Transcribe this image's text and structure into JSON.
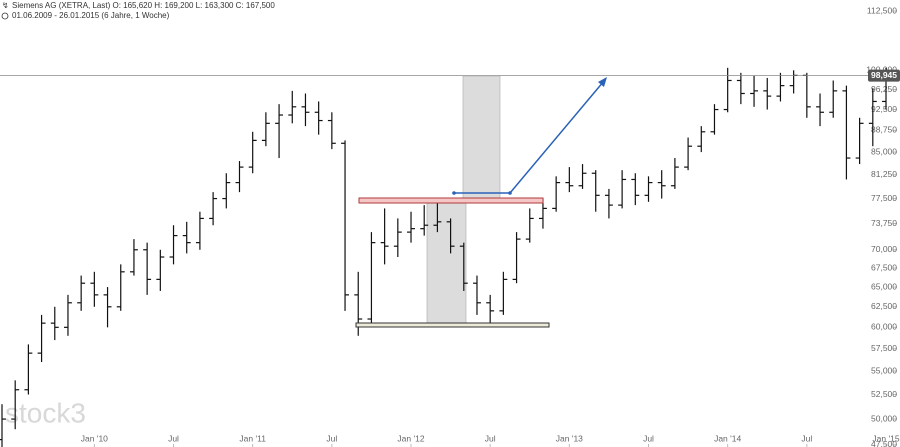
{
  "chart_data": {
    "type": "ohlc",
    "title": "Siemens AG (XETRA, Last)  O: 165,620  H: 169,200  L: 163,300  C: 167,500",
    "subtitle": "01.06.2009 - 26.01.2015  (6 Jahre, 1 Woche)",
    "watermark": "stock3",
    "color": "#111111",
    "log_scale": true,
    "x": [
      "2009-06",
      "2009-07",
      "2009-08",
      "2009-09",
      "2009-10",
      "2009-11",
      "2009-12",
      "2010-01",
      "2010-02",
      "2010-03",
      "2010-04",
      "2010-05",
      "2010-06",
      "2010-07",
      "2010-08",
      "2010-09",
      "2010-10",
      "2010-11",
      "2010-12",
      "2011-01",
      "2011-02",
      "2011-03",
      "2011-04",
      "2011-05",
      "2011-06",
      "2011-07",
      "2011-08",
      "2011-09",
      "2011-10",
      "2011-11",
      "2011-12",
      "2012-01",
      "2012-02",
      "2012-03",
      "2012-04",
      "2012-05",
      "2012-06",
      "2012-07",
      "2012-08",
      "2012-09",
      "2012-10",
      "2012-11",
      "2012-12",
      "2013-01",
      "2013-02",
      "2013-03",
      "2013-04",
      "2013-05",
      "2013-06",
      "2013-07",
      "2013-08",
      "2013-09",
      "2013-10",
      "2013-11",
      "2013-12",
      "2014-01",
      "2014-02",
      "2014-03",
      "2014-04",
      "2014-05",
      "2014-06",
      "2014-07",
      "2014-08",
      "2014-09",
      "2014-10",
      "2014-11",
      "2014-12",
      "2015-01"
    ],
    "open": [
      48000,
      50000,
      53000,
      57000,
      60500,
      60000,
      63000,
      65500,
      64000,
      62500,
      67000,
      70000,
      66000,
      69000,
      72000,
      71000,
      74500,
      77500,
      80000,
      82500,
      87000,
      90000,
      91500,
      93000,
      92000,
      90500,
      86500,
      64000,
      61000,
      71000,
      70500,
      72500,
      73000,
      73500,
      74000,
      70500,
      65500,
      63000,
      62000,
      66000,
      71500,
      74500,
      76000,
      80000,
      79500,
      81500,
      78000,
      76500,
      80500,
      78000,
      80000,
      79500,
      82500,
      86000,
      88500,
      92500,
      98000,
      95500,
      96000,
      95000,
      97000,
      99000,
      93000,
      92000,
      96000,
      84000,
      90000,
      94000
    ],
    "high": [
      51500,
      54000,
      58000,
      61500,
      62500,
      64000,
      66500,
      67000,
      65000,
      68000,
      71500,
      71000,
      70000,
      73500,
      74000,
      75500,
      78500,
      81500,
      83500,
      88500,
      92000,
      93500,
      96000,
      95500,
      94000,
      92000,
      87000,
      67000,
      72500,
      76000,
      74500,
      75500,
      76500,
      77000,
      74500,
      71000,
      66500,
      64000,
      67000,
      72500,
      76000,
      77500,
      81000,
      82500,
      83000,
      82000,
      79000,
      82000,
      81500,
      81000,
      82000,
      84000,
      87500,
      89500,
      93500,
      100500,
      99500,
      99000,
      98500,
      99500,
      100000,
      99500,
      95500,
      98000,
      97000,
      91000,
      96500,
      100500
    ],
    "low": [
      46500,
      49000,
      52500,
      56000,
      58500,
      59000,
      62000,
      62500,
      60000,
      62000,
      66500,
      64000,
      64500,
      68000,
      69500,
      70000,
      73500,
      76000,
      78500,
      81500,
      86000,
      84000,
      90000,
      89500,
      88000,
      85500,
      62000,
      59000,
      60500,
      68000,
      69000,
      71000,
      72000,
      72500,
      69500,
      64500,
      61500,
      60500,
      61500,
      65500,
      71000,
      73000,
      75500,
      78500,
      79000,
      75500,
      74500,
      76000,
      76500,
      77000,
      77500,
      79000,
      82000,
      85000,
      88000,
      92000,
      93500,
      93000,
      92500,
      94000,
      95500,
      91000,
      89500,
      91000,
      80500,
      83000,
      86000,
      92500
    ],
    "close": [
      50000,
      53000,
      57000,
      60500,
      60000,
      63000,
      65500,
      64000,
      62500,
      67000,
      70000,
      66000,
      69000,
      72000,
      71000,
      74500,
      77500,
      80000,
      82500,
      87000,
      90000,
      91500,
      93000,
      92000,
      90500,
      86500,
      64000,
      61000,
      71000,
      70500,
      72500,
      73000,
      73500,
      74000,
      70500,
      65500,
      63000,
      62000,
      66000,
      71500,
      74500,
      76000,
      80000,
      79500,
      81500,
      78000,
      76500,
      80500,
      78000,
      80000,
      79500,
      82500,
      86000,
      88500,
      92500,
      98000,
      95500,
      96000,
      95000,
      97000,
      99000,
      93000,
      92000,
      96000,
      84000,
      90000,
      94000,
      98900
    ],
    "xlim": [
      "2009-06",
      "2015-01"
    ],
    "xticks": [
      {
        "value": "2010-01",
        "label": "Jan '10"
      },
      {
        "value": "2010-07",
        "label": "Jul"
      },
      {
        "value": "2011-01",
        "label": "Jan '11"
      },
      {
        "value": "2011-07",
        "label": "Jul"
      },
      {
        "value": "2012-01",
        "label": "Jan '12"
      },
      {
        "value": "2012-07",
        "label": "Jul"
      },
      {
        "value": "2013-01",
        "label": "Jan '13"
      },
      {
        "value": "2013-07",
        "label": "Jul"
      },
      {
        "value": "2014-01",
        "label": "Jan '14"
      },
      {
        "value": "2014-07",
        "label": "Jul"
      },
      {
        "value": "2015-01",
        "label": "Jan '15"
      }
    ],
    "ylim": [
      47300,
      115000
    ],
    "yticks": [
      {
        "value": 112500,
        "label": "112,500"
      },
      {
        "value": 100000,
        "label": "100,000"
      },
      {
        "value": 96250,
        "label": "96,250"
      },
      {
        "value": 92500,
        "label": "92,500"
      },
      {
        "value": 88750,
        "label": "88,750"
      },
      {
        "value": 85000,
        "label": "85,000"
      },
      {
        "value": 81250,
        "label": "81,250"
      },
      {
        "value": 77500,
        "label": "77,500"
      },
      {
        "value": 73750,
        "label": "73,750"
      },
      {
        "value": 70000,
        "label": "70,000"
      },
      {
        "value": 67500,
        "label": "67,500"
      },
      {
        "value": 65000,
        "label": "65,000"
      },
      {
        "value": 62500,
        "label": "62,500"
      },
      {
        "value": 60000,
        "label": "60,000"
      },
      {
        "value": 57500,
        "label": "57,500"
      },
      {
        "value": 55000,
        "label": "55,000"
      },
      {
        "value": 52500,
        "label": "52,500"
      },
      {
        "value": 50000,
        "label": "50,000"
      },
      {
        "value": 47500,
        "label": "47,500"
      }
    ],
    "last_price": {
      "value": 98945,
      "label": "98,945"
    }
  }
}
